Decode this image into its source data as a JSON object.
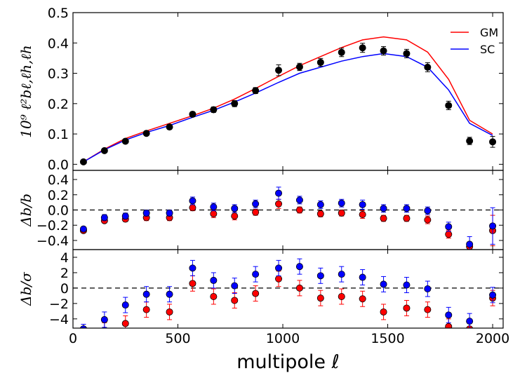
{
  "chart_data": {
    "type": "line",
    "colors": {
      "GM": "#ff0000",
      "SC": "#0000ff",
      "data": "#000000",
      "red_pts": "#ff0000",
      "blue_pts": "#0000ff"
    },
    "xlabel": "multipole ℓ",
    "xlim": [
      0,
      2050
    ],
    "xticks": [
      "0",
      "500",
      "1000",
      "1500",
      "2000"
    ],
    "xtick_values": [
      0,
      500,
      1000,
      1500,
      2000
    ],
    "panels": [
      {
        "ylabel": "10⁹ ℓ²bℓ,ℓh,ℓh",
        "ylim": [
          -0.02,
          0.5
        ],
        "yticks": [
          "0.0",
          "0.1",
          "0.2",
          "0.3",
          "0.4",
          "0.5"
        ],
        "ytick_values": [
          0.0,
          0.1,
          0.2,
          0.3,
          0.4,
          0.5
        ],
        "legend": [
          {
            "name": "GM"
          },
          {
            "name": "SC"
          }
        ],
        "lines": [
          {
            "name": "GM",
            "x": [
              50,
              150,
              250,
              350,
              460,
              570,
              670,
              770,
              870,
              980,
              1080,
              1180,
              1280,
              1380,
              1480,
              1590,
              1690,
              1790,
              1890,
              2000
            ],
            "y": [
              0.008,
              0.05,
              0.085,
              0.11,
              0.135,
              0.16,
              0.185,
              0.215,
              0.25,
              0.29,
              0.325,
              0.355,
              0.385,
              0.41,
              0.42,
              0.41,
              0.37,
              0.28,
              0.145,
              0.1
            ]
          },
          {
            "name": "SC",
            "x": [
              50,
              150,
              250,
              350,
              460,
              570,
              670,
              770,
              870,
              980,
              1080,
              1180,
              1280,
              1380,
              1480,
              1590,
              1690,
              1790,
              1890,
              2000
            ],
            "y": [
              0.008,
              0.048,
              0.08,
              0.105,
              0.128,
              0.155,
              0.178,
              0.205,
              0.235,
              0.27,
              0.3,
              0.32,
              0.34,
              0.355,
              0.365,
              0.355,
              0.32,
              0.245,
              0.135,
              0.095
            ]
          }
        ],
        "points": [
          {
            "name": "data",
            "x": [
              50,
              150,
              250,
              350,
              460,
              570,
              670,
              770,
              870,
              980,
              1080,
              1180,
              1280,
              1380,
              1480,
              1590,
              1690,
              1790,
              1890,
              2000
            ],
            "y": [
              0.008,
              0.045,
              0.076,
              0.102,
              0.123,
              0.165,
              0.18,
              0.2,
              0.243,
              0.31,
              0.321,
              0.336,
              0.369,
              0.384,
              0.374,
              0.365,
              0.32,
              0.194,
              0.077,
              0.074
            ],
            "err": [
              0.005,
              0.006,
              0.006,
              0.007,
              0.008,
              0.008,
              0.009,
              0.01,
              0.01,
              0.018,
              0.012,
              0.013,
              0.014,
              0.015,
              0.014,
              0.014,
              0.015,
              0.014,
              0.012,
              0.018
            ]
          }
        ]
      },
      {
        "ylabel": "Δb/b",
        "ylim": [
          -0.52,
          0.52
        ],
        "yticks": [
          "−0.4",
          "−0.2",
          "0.0",
          "0.2",
          "0.4"
        ],
        "ytick_values": [
          -0.4,
          -0.2,
          0.0,
          0.2,
          0.4
        ],
        "zero_line": true,
        "points": [
          {
            "name": "red_pts",
            "x": [
              50,
              150,
              250,
              350,
              460,
              570,
              670,
              770,
              870,
              980,
              1080,
              1180,
              1280,
              1380,
              1480,
              1590,
              1690,
              1790,
              1890,
              2000
            ],
            "y": [
              -0.27,
              -0.14,
              -0.12,
              -0.1,
              -0.1,
              0.03,
              -0.05,
              -0.08,
              -0.03,
              0.08,
              0.0,
              -0.05,
              -0.04,
              -0.06,
              -0.11,
              -0.11,
              -0.13,
              -0.32,
              -0.48,
              -0.27
            ],
            "err": [
              0.02,
              0.03,
              0.03,
              0.04,
              0.04,
              0.04,
              0.05,
              0.05,
              0.04,
              0.06,
              0.04,
              0.04,
              0.04,
              0.05,
              0.04,
              0.04,
              0.05,
              0.05,
              0.06,
              0.2
            ]
          },
          {
            "name": "blue_pts",
            "x": [
              50,
              150,
              250,
              350,
              460,
              570,
              670,
              770,
              870,
              980,
              1080,
              1180,
              1280,
              1380,
              1480,
              1590,
              1690,
              1790,
              1890,
              2000
            ],
            "y": [
              -0.25,
              -0.1,
              -0.08,
              -0.04,
              -0.04,
              0.12,
              0.04,
              0.02,
              0.08,
              0.22,
              0.13,
              0.07,
              0.09,
              0.07,
              0.02,
              0.02,
              -0.01,
              -0.22,
              -0.45,
              -0.21
            ],
            "err": [
              0.02,
              0.04,
              0.04,
              0.04,
              0.04,
              0.05,
              0.05,
              0.05,
              0.05,
              0.08,
              0.05,
              0.05,
              0.05,
              0.06,
              0.05,
              0.05,
              0.05,
              0.06,
              0.1,
              0.24
            ]
          }
        ]
      },
      {
        "ylabel": "Δb/σ",
        "ylim": [
          -5.2,
          5.0
        ],
        "yticks": [
          "−4",
          "−2",
          "0",
          "2",
          "4"
        ],
        "ytick_values": [
          -4,
          -2,
          0,
          2,
          4
        ],
        "zero_line": true,
        "points": [
          {
            "name": "red_pts",
            "x": [
              50,
              150,
              250,
              350,
              460,
              570,
              670,
              770,
              870,
              980,
              1080,
              1180,
              1280,
              1380,
              1480,
              1590,
              1690,
              1790,
              1890,
              2000
            ],
            "y": [
              -5.3,
              -5.5,
              -4.6,
              -2.8,
              -3.1,
              0.6,
              -1.1,
              -1.6,
              -0.7,
              1.2,
              0.0,
              -1.3,
              -1.1,
              -1.4,
              -3.1,
              -2.6,
              -2.8,
              -5.0,
              -5.3,
              -1.3
            ],
            "err": [
              0.6,
              1.0,
              1.0,
              1.0,
              1.0,
              1.0,
              1.0,
              1.0,
              1.0,
              1.0,
              1.0,
              1.0,
              1.0,
              1.0,
              1.0,
              1.0,
              1.0,
              1.0,
              1.0,
              1.0
            ]
          },
          {
            "name": "blue_pts",
            "x": [
              50,
              150,
              250,
              350,
              460,
              570,
              670,
              770,
              870,
              980,
              1080,
              1180,
              1280,
              1380,
              1480,
              1590,
              1690,
              1790,
              1890,
              2000
            ],
            "y": [
              -5.3,
              -4.1,
              -2.2,
              -0.8,
              -0.8,
              2.6,
              1.0,
              0.3,
              1.8,
              2.6,
              2.8,
              1.6,
              1.8,
              1.4,
              0.5,
              0.4,
              -0.1,
              -3.5,
              -4.3,
              -0.9
            ],
            "err": [
              0.6,
              1.0,
              1.0,
              1.0,
              1.0,
              1.0,
              1.0,
              1.0,
              1.0,
              1.0,
              1.0,
              1.0,
              1.0,
              1.0,
              1.0,
              1.0,
              1.0,
              1.0,
              1.0,
              1.0
            ]
          }
        ]
      }
    ]
  }
}
